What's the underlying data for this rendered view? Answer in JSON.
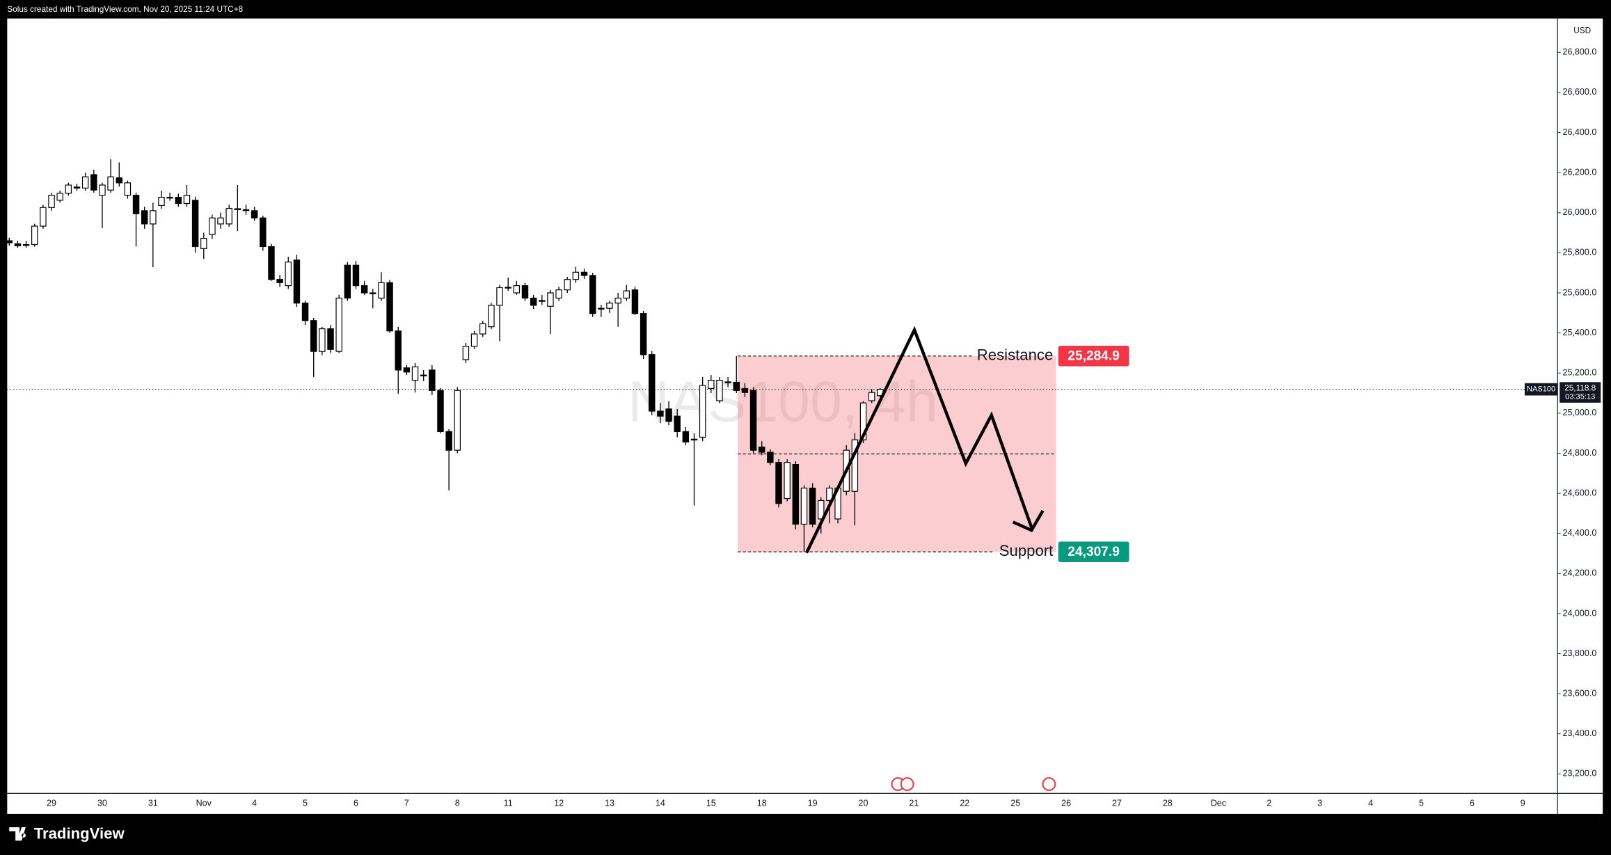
{
  "header": {
    "credit": "Solus created with TradingView.com, Nov 20, 2025 11:24 UTC+8"
  },
  "footer": {
    "brand": "TradingView"
  },
  "chart_data": {
    "type": "candlestick",
    "watermark": "NAS100, 4h",
    "currency": "USD",
    "up_color": "#ffffff",
    "down_color": "#000000",
    "wick_color": "#000000",
    "zone_color": "#f23645",
    "ylim": [
      23103,
      26969
    ],
    "yticks": [
      {
        "value": 23200,
        "label": "23,200.0"
      },
      {
        "value": 23400,
        "label": "23,400.0"
      },
      {
        "value": 23600,
        "label": "23,600.0"
      },
      {
        "value": 23800,
        "label": "23,800.0"
      },
      {
        "value": 24000,
        "label": "24,000.0"
      },
      {
        "value": 24200,
        "label": "24,200.0"
      },
      {
        "value": 24400,
        "label": "24,400.0"
      },
      {
        "value": 24600,
        "label": "24,600.0"
      },
      {
        "value": 24800,
        "label": "24,800.0"
      },
      {
        "value": 25000,
        "label": "25,000.0"
      },
      {
        "value": 25200,
        "label": "25,200.0"
      },
      {
        "value": 25400,
        "label": "25,400.0"
      },
      {
        "value": 25600,
        "label": "25,600.0"
      },
      {
        "value": 25800,
        "label": "25,800.0"
      },
      {
        "value": 26000,
        "label": "26,000.0"
      },
      {
        "value": 26200,
        "label": "26,200.0"
      },
      {
        "value": 26400,
        "label": "26,400.0"
      },
      {
        "value": 26600,
        "label": "26,600.0"
      },
      {
        "value": 26800,
        "label": "26,800.0"
      }
    ],
    "x_labels": [
      "29",
      "30",
      "31",
      "Nov",
      "4",
      "5",
      "6",
      "7",
      "8",
      "11",
      "12",
      "13",
      "14",
      "15",
      "18",
      "19",
      "20",
      "21",
      "22",
      "25",
      "26",
      "27",
      "28",
      "Dec",
      "2",
      "3",
      "4",
      "5",
      "6",
      "9"
    ],
    "open": [
      25860,
      25845,
      25838,
      25841,
      25933,
      26026,
      26062,
      26097,
      26128,
      26123,
      26190,
      26087,
      26113,
      26174,
      26087,
      26087,
      26010,
      25944,
      26036,
      26077,
      26077,
      26046,
      26062,
      25821,
      25892,
      25944,
      25944,
      26015,
      26015,
      26010,
      25974,
      25831,
      25667,
      25636,
      25764,
      25549,
      25462,
      25308,
      25421,
      25308,
      25738,
      25738,
      25636,
      25600,
      25574,
      25651,
      25410,
      25226,
      25164,
      25190,
      25215,
      25113,
      24908,
      24815,
      25267,
      25333,
      25395,
      25431,
      25538,
      25626,
      25600,
      25636,
      25574,
      25560,
      25533,
      25574,
      25615,
      25667,
      25703,
      25687,
      25523,
      25523,
      25549,
      25574,
      25615,
      25497,
      25292,
      25010,
      25021,
      24985,
      24908,
      24867,
      24880,
      25123,
      25062,
      25154,
      25154,
      25123,
      25113,
      24831,
      24805,
      24754,
      24574,
      24744,
      24446,
      24626,
      24472,
      24564,
      24472,
      24610,
      24610,
      24867,
      25062,
      25087
    ],
    "high": [
      25875,
      25860,
      25860,
      25945,
      26040,
      26100,
      26110,
      26150,
      26145,
      26200,
      26215,
      26150,
      26267,
      26251,
      26160,
      26100,
      26030,
      26050,
      26110,
      26100,
      26095,
      26138,
      26080,
      25900,
      25990,
      26000,
      26040,
      26138,
      26040,
      26030,
      25985,
      25845,
      25690,
      25780,
      25790,
      25560,
      25475,
      25430,
      25440,
      25590,
      25754,
      25760,
      25660,
      25620,
      25703,
      25665,
      25430,
      25240,
      25250,
      25215,
      25240,
      25125,
      24920,
      25130,
      25350,
      25410,
      25460,
      25550,
      25640,
      25677,
      25660,
      25650,
      25590,
      25590,
      25615,
      25630,
      25680,
      25730,
      25720,
      25700,
      25540,
      25560,
      25600,
      25640,
      25630,
      25510,
      25310,
      25050,
      25060,
      25020,
      24930,
      24900,
      25180,
      25190,
      25180,
      25180,
      25284.9,
      25150,
      25130,
      24860,
      24820,
      24770,
      24770,
      24760,
      24640,
      24650,
      24580,
      24640,
      24640,
      24840,
      24900,
      25060,
      25120,
      25125
    ],
    "low": [
      25835,
      25825,
      25825,
      25830,
      25920,
      26010,
      26050,
      26085,
      26110,
      26110,
      26100,
      25923,
      26100,
      26130,
      26070,
      25831,
      25920,
      25728,
      26020,
      26060,
      26030,
      26030,
      25800,
      25769,
      25870,
      25920,
      25930,
      25908,
      25990,
      25960,
      25810,
      25660,
      25630,
      25620,
      25530,
      25440,
      25180,
      25290,
      25300,
      25300,
      25560,
      25620,
      25590,
      25523,
      25560,
      25400,
      25097,
      25190,
      25103,
      25160,
      25090,
      24900,
      24615,
      24800,
      25250,
      25320,
      25380,
      25420,
      25359,
      25610,
      25590,
      25560,
      25520,
      25540,
      25395,
      25560,
      25600,
      25650,
      25670,
      25480,
      25480,
      25500,
      25431,
      25560,
      25490,
      25270,
      24990,
      24950,
      24940,
      24880,
      24840,
      24539,
      24860,
      25100,
      25050,
      25130,
      25100,
      25080,
      24800,
      24790,
      24740,
      24530,
      24560,
      24420,
      24307.9,
      24430,
      24400,
      24450,
      24450,
      24590,
      24440,
      24850,
      25050,
      25080
    ],
    "close": [
      25850,
      25835,
      25841,
      25933,
      26026,
      26087,
      26097,
      26138,
      26123,
      26179,
      26113,
      26138,
      26179,
      26149,
      26149,
      25995,
      25944,
      26010,
      26077,
      26077,
      26046,
      26087,
      25831,
      25872,
      25974,
      25974,
      26021,
      26020,
      26012,
      25974,
      25831,
      25667,
      25651,
      25754,
      25549,
      25462,
      25308,
      25421,
      25318,
      25574,
      25574,
      25636,
      25600,
      25598,
      25651,
      25410,
      25215,
      25205,
      25231,
      25188,
      25113,
      24908,
      24815,
      25113,
      25333,
      25395,
      25446,
      25538,
      25626,
      25628,
      25636,
      25574,
      25538,
      25562,
      25600,
      25615,
      25667,
      25703,
      25687,
      25497,
      25520,
      25549,
      25574,
      25610,
      25497,
      25292,
      25010,
      24985,
      24959,
      24908,
      24856,
      24870,
      25138,
      25164,
      25164,
      25156,
      25113,
      25103,
      24815,
      24805,
      24754,
      24549,
      24754,
      24446,
      24626,
      24446,
      24564,
      24626,
      24626,
      24815,
      24867,
      25051,
      25103,
      25118.8
    ],
    "resistance": {
      "label": "Resistance",
      "value": 25284.9,
      "value_label": "25,284.9",
      "color": "#f23645"
    },
    "support": {
      "label": "Support",
      "value": 24307.9,
      "value_label": "24,307.9",
      "color": "#089981"
    },
    "last_price": {
      "value": 25118.8,
      "label": "25,118.8",
      "symbol": "NAS100",
      "countdown": "03:35:13"
    }
  }
}
